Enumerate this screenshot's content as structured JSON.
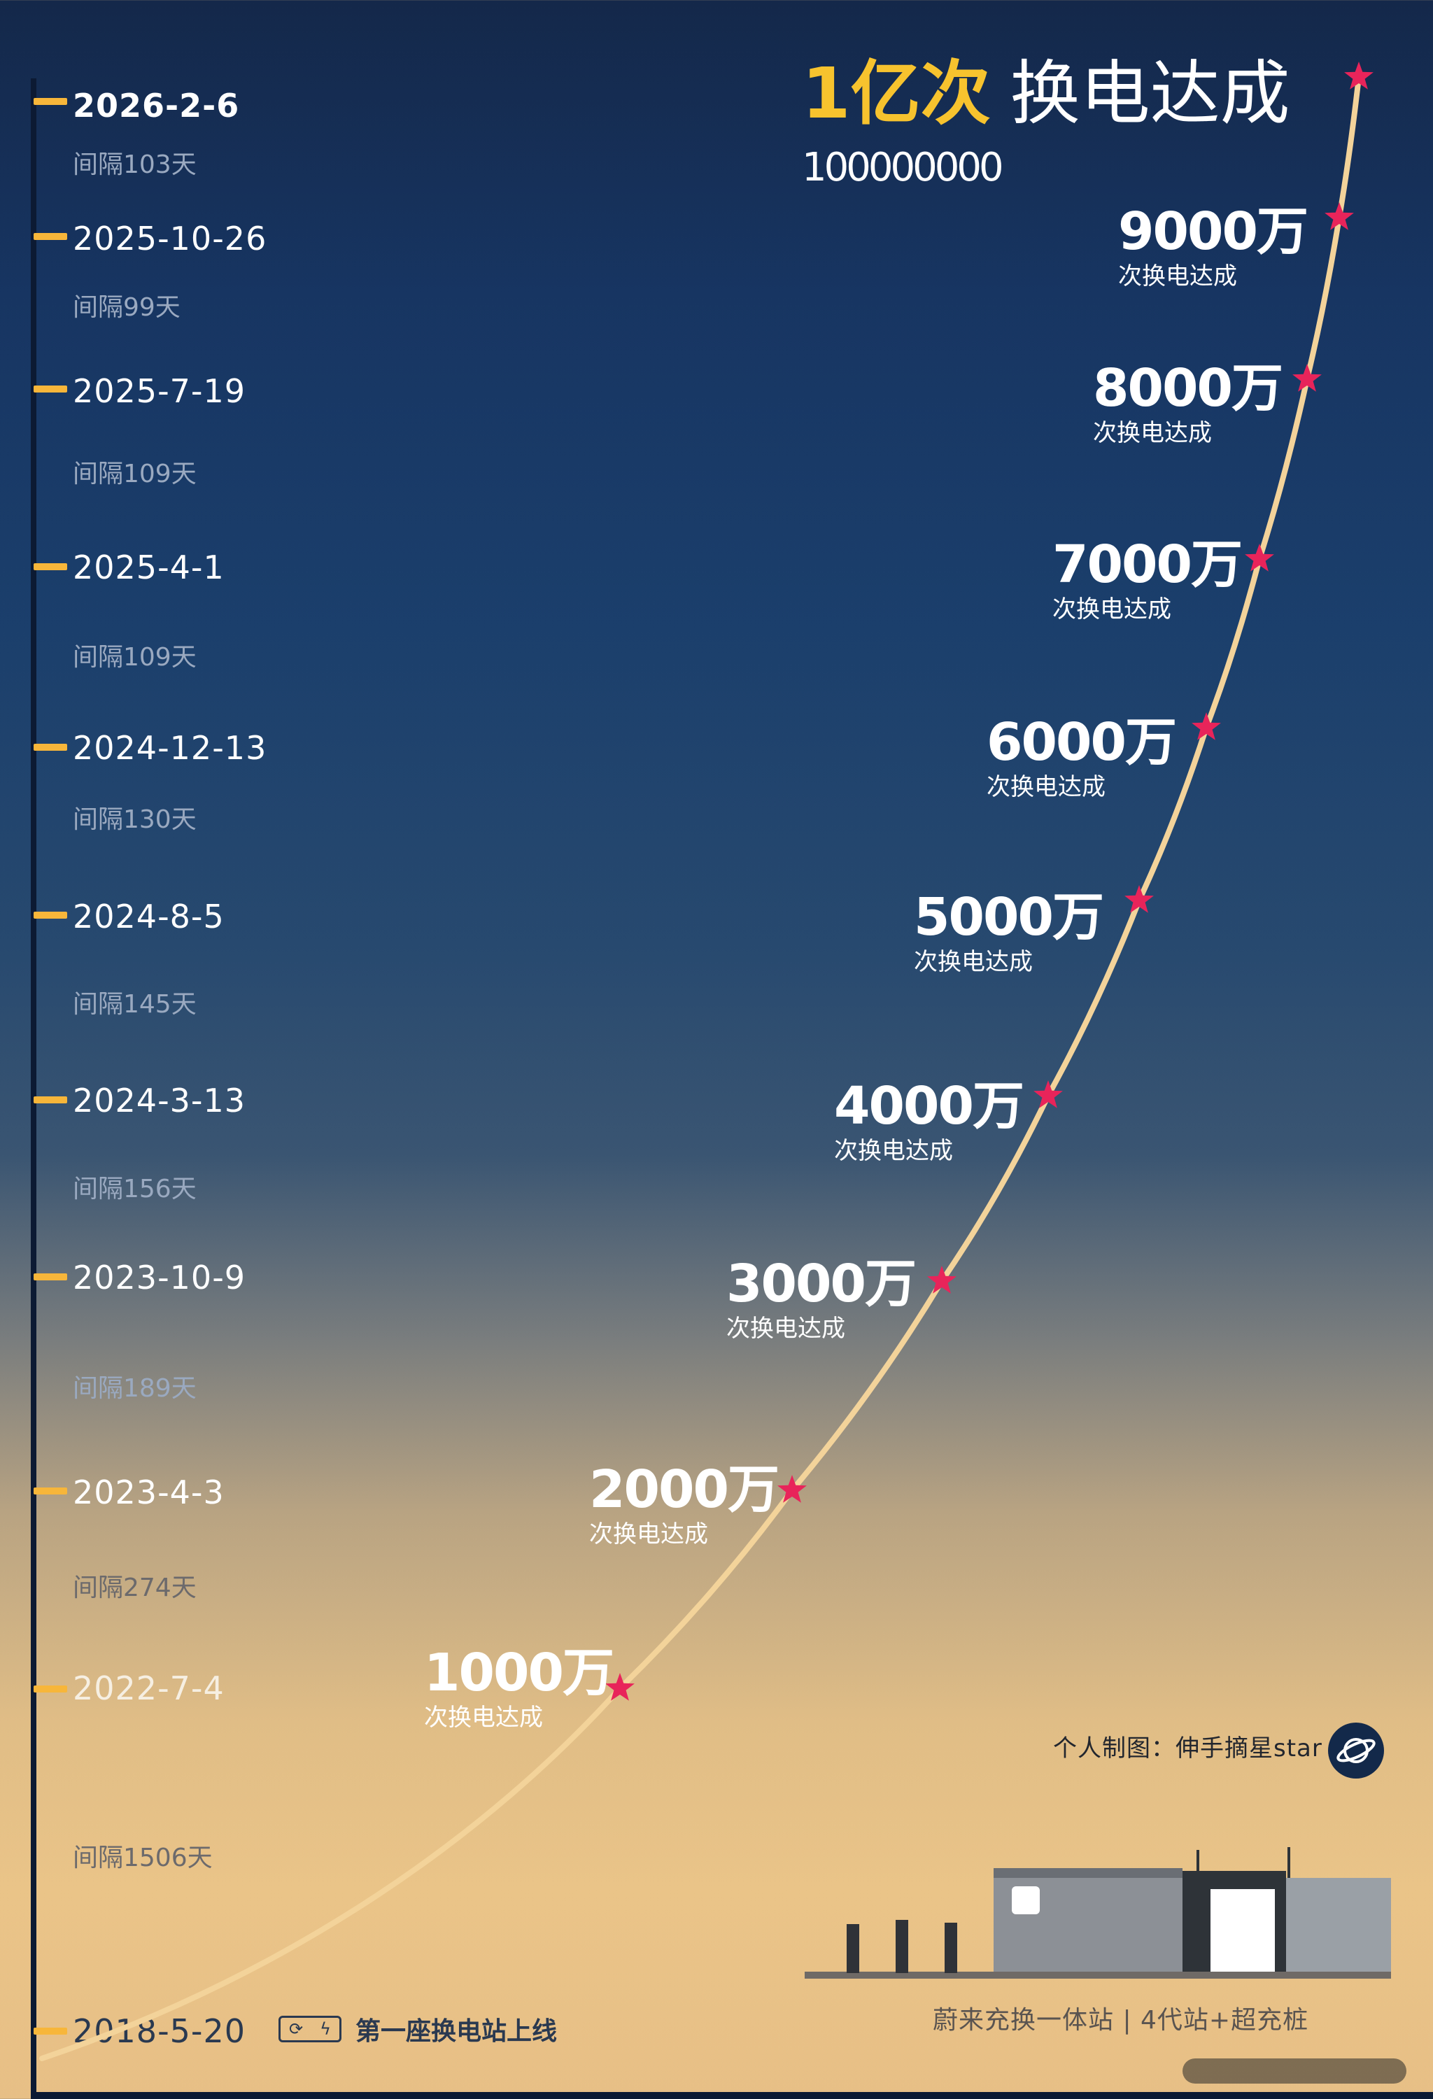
{
  "chart_data": {
    "type": "line",
    "title": "1亿次 换电达成",
    "subtitle_number": "100000000",
    "x_axis": "date",
    "y_unit": "万次换电",
    "points": [
      {
        "date": "2018-5-20",
        "value": 0
      },
      {
        "date": "2022-7-4",
        "value": 1000
      },
      {
        "date": "2023-4-3",
        "value": 2000
      },
      {
        "date": "2023-10-9",
        "value": 3000
      },
      {
        "date": "2024-3-13",
        "value": 4000
      },
      {
        "date": "2024-8-5",
        "value": 5000
      },
      {
        "date": "2024-12-13",
        "value": 6000
      },
      {
        "date": "2025-4-1",
        "value": 7000
      },
      {
        "date": "2025-7-19",
        "value": 8000
      },
      {
        "date": "2025-10-26",
        "value": 9000
      },
      {
        "date": "2026-2-6",
        "value": 10000
      }
    ],
    "line_color": "#f3d39a",
    "marker_color": "#e8245a"
  },
  "headline": {
    "gold": "1亿次",
    "white": "换电达成",
    "number": "100000000"
  },
  "timeline": [
    {
      "date": "2026-2-6",
      "interval": "间隔103天"
    },
    {
      "date": "2025-10-26",
      "interval": "间隔99天"
    },
    {
      "date": "2025-7-19",
      "interval": "间隔109天"
    },
    {
      "date": "2025-4-1",
      "interval": "间隔109天"
    },
    {
      "date": "2024-12-13",
      "interval": "间隔130天"
    },
    {
      "date": "2024-8-5",
      "interval": "间隔145天"
    },
    {
      "date": "2024-3-13",
      "interval": "间隔156天"
    },
    {
      "date": "2023-10-9",
      "interval": "间隔189天"
    },
    {
      "date": "2023-4-3",
      "interval": "间隔274天"
    },
    {
      "date": "2022-7-4",
      "interval": "间隔1506天"
    },
    {
      "date": "2018-5-20"
    }
  ],
  "milestones": [
    {
      "value": "9000万",
      "label": "次换电达成"
    },
    {
      "value": "8000万",
      "label": "次换电达成"
    },
    {
      "value": "7000万",
      "label": "次换电达成"
    },
    {
      "value": "6000万",
      "label": "次换电达成"
    },
    {
      "value": "5000万",
      "label": "次换电达成"
    },
    {
      "value": "4000万",
      "label": "次换电达成"
    },
    {
      "value": "3000万",
      "label": "次换电达成"
    },
    {
      "value": "2000万",
      "label": "次换电达成"
    },
    {
      "value": "1000万",
      "label": "次换电达成"
    }
  ],
  "first_station": {
    "text": "第一座换电站上线"
  },
  "credit": "个人制图：伸手摘星star",
  "caption": "蔚来充换一体站 | 4代站+超充桩",
  "icons": {
    "planet": "planet-icon",
    "swap": "battery-swap-icon",
    "station": "swap-station-image"
  }
}
